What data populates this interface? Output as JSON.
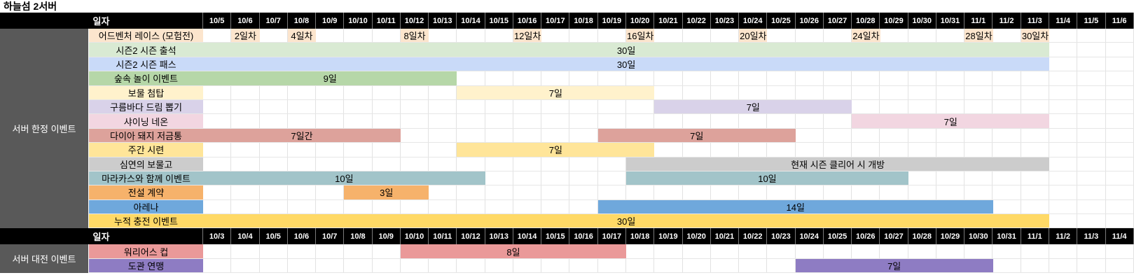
{
  "title": "하늘섬 2서버",
  "grid": {
    "columns": 33,
    "group_bg": "#595959",
    "header_bg": "#000000"
  },
  "sections": [
    {
      "name": "server-limited-events",
      "header_label": "일자",
      "group_label": "서버 한정 이벤트",
      "dates": [
        "10/5",
        "10/6",
        "10/7",
        "10/8",
        "10/9",
        "10/10",
        "10/11",
        "10/12",
        "10/13",
        "10/14",
        "10/15",
        "10/16",
        "10/17",
        "10/18",
        "10/19",
        "10/20",
        "10/21",
        "10/22",
        "10/23",
        "10/24",
        "10/25",
        "10/26",
        "10/27",
        "10/28",
        "10/29",
        "10/30",
        "10/31",
        "11/1",
        "11/2",
        "11/3",
        "11/4",
        "11/5",
        "11/6"
      ],
      "rows": [
        {
          "label": "어드벤처 레이스 (모험전)",
          "color": "#fce5cd",
          "marks": [
            {
              "date": "10/6",
              "label": "2일차"
            },
            {
              "date": "10/8",
              "label": "4일차"
            },
            {
              "date": "10/12",
              "label": "8일차"
            },
            {
              "date": "10/16",
              "label": "12일차"
            },
            {
              "date": "10/20",
              "label": "16일차"
            },
            {
              "date": "10/24",
              "label": "20일차"
            },
            {
              "date": "10/28",
              "label": "24일차"
            },
            {
              "date": "11/1",
              "label": "28일차"
            },
            {
              "date": "11/3",
              "label": "30일차"
            }
          ]
        },
        {
          "label": "시즌2 시즌 출석",
          "color": "#d9ead3",
          "bars": [
            {
              "start": "10/5",
              "days": 30,
              "label": "30일"
            }
          ]
        },
        {
          "label": "시즌2 시즌 패스",
          "color": "#c9daf8",
          "bars": [
            {
              "start": "10/5",
              "days": 30,
              "label": "30일"
            }
          ]
        },
        {
          "label": "숲속 놀이 이벤트",
          "color": "#b6d7a8",
          "bars": [
            {
              "start": "10/5",
              "days": 9,
              "label": "9일"
            }
          ]
        },
        {
          "label": "보물 첨탑",
          "color": "#fff2cc",
          "bars": [
            {
              "start": "10/14",
              "days": 7,
              "label": "7일"
            }
          ]
        },
        {
          "label": "구름바다 드림 뽑기",
          "color": "#d9d2e9",
          "bars": [
            {
              "start": "10/21",
              "days": 7,
              "label": "7일"
            }
          ]
        },
        {
          "label": "샤이닝 네온",
          "color": "#f2d6e1",
          "bars": [
            {
              "start": "10/28",
              "days": 7,
              "label": "7일"
            }
          ]
        },
        {
          "label": "다이아 돼지 저금통",
          "color": "#dda29b",
          "bars": [
            {
              "start": "10/5",
              "days": 7,
              "label": "7일간"
            },
            {
              "start": "10/19",
              "days": 7,
              "label": "7일"
            }
          ]
        },
        {
          "label": "주간 시련",
          "color": "#ffe599",
          "bars": [
            {
              "start": "10/14",
              "days": 7,
              "label": "7일"
            }
          ]
        },
        {
          "label": "심연의 보물고",
          "color": "#cccccc",
          "bars": [
            {
              "start": "10/20",
              "days": 15,
              "label": "현재 시즌 클리어 시 개방"
            }
          ]
        },
        {
          "label": "마라카스와 함께 이벤트",
          "color": "#a2c4c9",
          "bars": [
            {
              "start": "10/5",
              "days": 10,
              "label": "10일"
            },
            {
              "start": "10/20",
              "days": 10,
              "label": "10일"
            }
          ]
        },
        {
          "label": "전설 계약",
          "color": "#f6b26b",
          "bars": [
            {
              "start": "10/10",
              "days": 3,
              "label": "3일"
            }
          ]
        },
        {
          "label": "아레나",
          "color": "#6fa8dc",
          "bars": [
            {
              "start": "10/19",
              "days": 14,
              "label": "14일"
            }
          ]
        },
        {
          "label": "누적 충전 이벤트",
          "color": "#ffd966",
          "bars": [
            {
              "start": "10/5",
              "days": 30,
              "label": "30일"
            }
          ]
        }
      ]
    },
    {
      "name": "server-battle-events",
      "header_label": "일자",
      "group_label": "서버 대전 이벤트",
      "dates": [
        "10/3",
        "10/4",
        "10/5",
        "10/6",
        "10/7",
        "10/8",
        "10/9",
        "10/10",
        "10/11",
        "10/12",
        "10/13",
        "10/14",
        "10/15",
        "10/16",
        "10/17",
        "10/18",
        "10/19",
        "10/20",
        "10/21",
        "10/22",
        "10/23",
        "10/24",
        "10/25",
        "10/26",
        "10/27",
        "10/28",
        "10/29",
        "10/30",
        "10/31",
        "11/1",
        "11/2",
        "11/3",
        "11/4"
      ],
      "rows": [
        {
          "label": "워리어스 컵",
          "color": "#ea9999",
          "bars": [
            {
              "start": "10/10",
              "days": 8,
              "label": "8일"
            }
          ]
        },
        {
          "label": "도관 연맹",
          "color": "#8e7cc3",
          "bars": [
            {
              "start": "10/24",
              "days": 7,
              "label": "7일"
            }
          ]
        }
      ]
    }
  ]
}
